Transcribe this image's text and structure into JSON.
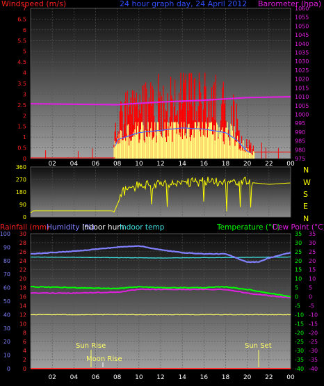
{
  "top": {
    "left_label": "Windspeed (m/s)",
    "center_label": "24 hour graph day, 24 April 2012",
    "right_label": "Barometer (hpa)"
  },
  "mid": {
    "dir_letters": [
      "N",
      "W",
      "S",
      "E",
      "N"
    ]
  },
  "bottom": {
    "labels": {
      "rainfall": "Rainfall (mm)",
      "humidity": "Humidity (%)",
      "indoor_hum": "Indoor hum",
      "indoor_temp": "Indoor temp",
      "temperature": "Temperature (°C)",
      "dew_point": "Dew Point (°C)"
    },
    "events": {
      "sun_rise": "Sun Rise",
      "moon_rise": "Moon Rise",
      "sun_set": "Sun Set"
    }
  },
  "colors": {
    "wind": "#ff0000",
    "gust": "#ffff80",
    "avg_wind": "#4466ff",
    "barometer": "#e020e0",
    "direction": "#ffff00",
    "rain": "#ff3030",
    "humidity": "#8080ff",
    "indoor_hum": "#ffffff",
    "indoor_temp": "#40e0e0",
    "temperature": "#00ff00",
    "dew_point": "#e020e0",
    "yellow_line": "#ffff66"
  },
  "chart_data": [
    {
      "type": "line",
      "x_ticks": [
        "02",
        "04",
        "06",
        "08",
        "10",
        "12",
        "14",
        "16",
        "18",
        "20",
        "22",
        "00"
      ],
      "y_left": {
        "range": [
          0,
          7
        ],
        "ticks": [
          "0",
          "0.5",
          "1",
          "1.5",
          "2",
          "2.5",
          "3",
          "3.5",
          "4",
          "4.5",
          "5",
          "5.5",
          "6",
          "6.5",
          "7"
        ]
      },
      "y_right": {
        "range": [
          975,
          1060
        ],
        "ticks": [
          "975",
          "980",
          "985",
          "990",
          "995",
          "1000",
          "1005",
          "1010",
          "1015",
          "1020",
          "1025",
          "1030",
          "1035",
          "1040",
          "1045",
          "1050",
          "1055",
          "1060"
        ]
      },
      "barometer": {
        "x": [
          0,
          8,
          12,
          16,
          20,
          24
        ],
        "y": [
          1006,
          1005.5,
          1007,
          1008,
          1009.5,
          1010
        ]
      },
      "wind_profile": {
        "x": [
          0,
          7.5,
          8,
          10,
          12,
          14,
          16,
          18,
          19,
          20,
          21,
          24
        ],
        "y": [
          0.1,
          0.2,
          1.6,
          2.2,
          2.4,
          2.6,
          2.5,
          2.2,
          1.6,
          0.6,
          0.3,
          0.2
        ]
      }
    },
    {
      "type": "line",
      "y_left": {
        "range": [
          0,
          360
        ],
        "ticks": [
          "0",
          "90",
          "180",
          "270",
          "360"
        ]
      },
      "direction": {
        "x": [
          0,
          0.3,
          7.5,
          7.7,
          8.5,
          10,
          12,
          14,
          16,
          18,
          20,
          22,
          24
        ],
        "y": [
          30,
          45,
          45,
          35,
          180,
          230,
          230,
          240,
          255,
          260,
          250,
          235,
          245
        ]
      }
    },
    {
      "type": "line",
      "y_left_rain": {
        "range": [
          0,
          30
        ],
        "ticks": [
          "0",
          "2",
          "4",
          "6",
          "8",
          "10",
          "12",
          "14",
          "16",
          "18",
          "20",
          "22",
          "24",
          "26",
          "28",
          "30"
        ]
      },
      "y_left_hum": {
        "range": [
          0,
          100
        ],
        "ticks": [
          "0",
          "10",
          "20",
          "30",
          "40",
          "50",
          "60",
          "70",
          "80",
          "90",
          "100"
        ]
      },
      "y_right_temp": {
        "range": [
          -40,
          35
        ],
        "ticks": [
          "-40",
          "-35",
          "-30",
          "-25",
          "-20",
          "-15",
          "-10",
          "-5",
          "0",
          "5",
          "10",
          "15",
          "20",
          "25",
          "30",
          "35"
        ]
      },
      "humidity": {
        "x": [
          0,
          4,
          8,
          10,
          12,
          14,
          16,
          18,
          19,
          20,
          21,
          22,
          24
        ],
        "y": [
          85,
          87,
          90,
          91,
          88,
          86,
          85,
          85,
          82,
          79,
          79,
          82,
          86
        ]
      },
      "indoor_temp": {
        "x": [
          0,
          12,
          24
        ],
        "y": [
          22,
          21.5,
          22
        ]
      },
      "yellow_line": {
        "x": [
          0,
          24
        ],
        "y": [
          -10,
          -10
        ]
      },
      "temperature": {
        "x": [
          0,
          4,
          8,
          10,
          12,
          16,
          18,
          20,
          22,
          24
        ],
        "y": [
          5.5,
          5,
          4.5,
          5.5,
          5,
          5,
          5.5,
          4,
          2,
          0
        ]
      },
      "dew_point": {
        "x": [
          0,
          4,
          8,
          10,
          12,
          16,
          18,
          20,
          22,
          24
        ],
        "y": [
          2,
          2,
          2.5,
          4,
          4,
          4,
          4,
          2,
          0.5,
          -0.5
        ]
      },
      "rain": {
        "x": [
          0,
          24
        ],
        "y": [
          0,
          0
        ]
      }
    }
  ]
}
